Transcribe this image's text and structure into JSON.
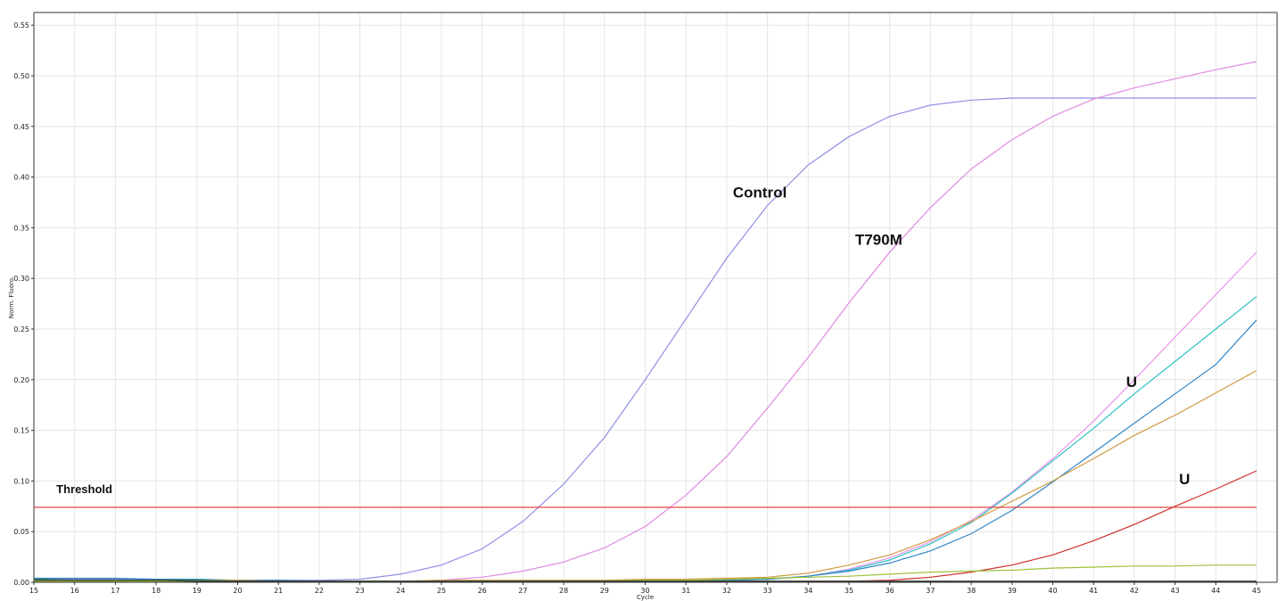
{
  "chart_data": {
    "type": "line",
    "xlabel": "Cycle",
    "ylabel": "Norm. Fluoro.",
    "xlim": [
      15,
      45
    ],
    "ylim": [
      0,
      0.56
    ],
    "x_ticks": [
      15,
      16,
      17,
      18,
      19,
      20,
      21,
      22,
      23,
      24,
      25,
      26,
      27,
      28,
      29,
      30,
      31,
      32,
      33,
      34,
      35,
      36,
      37,
      38,
      39,
      40,
      41,
      42,
      43,
      44,
      45
    ],
    "y_ticks": [
      0.0,
      0.05,
      0.1,
      0.15,
      0.2,
      0.25,
      0.3,
      0.35,
      0.4,
      0.45,
      0.5,
      0.55
    ],
    "y_tick_labels": [
      "0.00",
      "0.05",
      "0.10",
      "0.15",
      "0.20",
      "0.25",
      "0.30",
      "0.35",
      "0.40",
      "0.45",
      "0.50",
      "0.55"
    ],
    "grid": true,
    "threshold": {
      "label": "Threshold",
      "value": 0.074,
      "color": "#e03030"
    },
    "x": [
      15,
      16,
      17,
      18,
      19,
      20,
      21,
      22,
      23,
      24,
      25,
      26,
      27,
      28,
      29,
      30,
      31,
      32,
      33,
      34,
      35,
      36,
      37,
      38,
      39,
      40,
      41,
      42,
      43,
      44,
      45
    ],
    "series": [
      {
        "color": "#8f8fe6",
        "values": [
          0.003,
          0.003,
          0.003,
          0.003,
          0.002,
          0.002,
          0.002,
          0.002,
          0.003,
          0.008,
          0.017,
          0.033,
          0.06,
          0.097,
          0.143,
          0.2,
          0.26,
          0.32,
          0.372,
          0.412,
          0.44,
          0.46,
          0.471,
          0.476,
          0.478,
          0.478,
          0.478,
          0.478,
          0.478,
          0.478,
          0.478
        ]
      },
      {
        "color": "#e08ae0",
        "values": [
          0.002,
          0.002,
          0.002,
          0.002,
          0.002,
          0.001,
          0.001,
          0.001,
          0.001,
          0.001,
          0.002,
          0.005,
          0.011,
          0.02,
          0.034,
          0.055,
          0.086,
          0.124,
          0.172,
          0.222,
          0.276,
          0.326,
          0.37,
          0.408,
          0.437,
          0.46,
          0.477,
          0.488,
          0.497,
          0.506,
          0.514
        ]
      },
      {
        "color": "#e896e8",
        "values": [
          0.001,
          0.001,
          0.001,
          0.001,
          0.001,
          0.001,
          0.001,
          0.001,
          0.001,
          0.001,
          0.001,
          0.001,
          0.001,
          0.001,
          0.002,
          0.002,
          0.002,
          0.002,
          0.003,
          0.006,
          0.013,
          0.024,
          0.04,
          0.061,
          0.089,
          0.122,
          0.159,
          0.2,
          0.242,
          0.284,
          0.326
        ]
      },
      {
        "color": "#30c0c0",
        "values": [
          0.002,
          0.002,
          0.002,
          0.002,
          0.002,
          0.002,
          0.001,
          0.001,
          0.001,
          0.001,
          0.001,
          0.001,
          0.001,
          0.001,
          0.001,
          0.001,
          0.001,
          0.002,
          0.003,
          0.006,
          0.012,
          0.022,
          0.038,
          0.059,
          0.088,
          0.12,
          0.152,
          0.186,
          0.218,
          0.25,
          0.282
        ]
      },
      {
        "color": "#2f86c8",
        "values": [
          0.004,
          0.004,
          0.004,
          0.003,
          0.003,
          0.002,
          0.002,
          0.001,
          0.001,
          0.001,
          0.001,
          0.001,
          0.001,
          0.001,
          0.001,
          0.002,
          0.002,
          0.002,
          0.003,
          0.006,
          0.011,
          0.019,
          0.031,
          0.048,
          0.071,
          0.099,
          0.128,
          0.157,
          0.186,
          0.215,
          0.259
        ]
      },
      {
        "color": "#d09a40",
        "values": [
          0.002,
          0.002,
          0.002,
          0.002,
          0.002,
          0.002,
          0.001,
          0.001,
          0.001,
          0.001,
          0.002,
          0.002,
          0.002,
          0.002,
          0.002,
          0.003,
          0.003,
          0.004,
          0.005,
          0.009,
          0.017,
          0.027,
          0.042,
          0.06,
          0.08,
          0.1,
          0.122,
          0.145,
          0.165,
          0.187,
          0.209
        ]
      },
      {
        "color": "#d03030",
        "values": [
          0.001,
          0.001,
          0.001,
          0.001,
          0.001,
          0.001,
          0.001,
          0.001,
          0.001,
          0.001,
          0.001,
          0.001,
          0.001,
          0.001,
          0.001,
          0.001,
          0.001,
          0.001,
          0.001,
          0.001,
          0.001,
          0.002,
          0.005,
          0.01,
          0.017,
          0.027,
          0.041,
          0.057,
          0.075,
          0.092,
          0.11
        ]
      },
      {
        "color": "#9cc23a",
        "values": [
          0.001,
          0.001,
          0.001,
          0.001,
          0.001,
          0.001,
          0.001,
          0.001,
          0.001,
          0.001,
          0.001,
          0.001,
          0.001,
          0.001,
          0.001,
          0.002,
          0.002,
          0.003,
          0.004,
          0.005,
          0.006,
          0.008,
          0.01,
          0.011,
          0.012,
          0.014,
          0.015,
          0.016,
          0.016,
          0.017,
          0.017
        ]
      },
      {
        "color": "#208040",
        "values": [
          0.003,
          0.002,
          0.002,
          0.002,
          0.002,
          0.001,
          0.001,
          0.001,
          0.001,
          0.001,
          0.001,
          0.001,
          0.001,
          0.001,
          0.001,
          0.001,
          0.001,
          0.001,
          0.001,
          0.001,
          0.001,
          0.001,
          0.001,
          0.001,
          0.001,
          0.001,
          0.001,
          0.001,
          0.001,
          0.001,
          0.001
        ]
      },
      {
        "color": "#3a3a3a",
        "values": [
          0.002,
          0.002,
          0.002,
          0.002,
          0.001,
          0.001,
          0.001,
          0.001,
          0.001,
          0.001,
          0.001,
          0.001,
          0.001,
          0.001,
          0.001,
          0.001,
          0.001,
          0.001,
          0.001,
          0.001,
          0.001,
          0.001,
          0.001,
          0.001,
          0.001,
          0.001,
          0.001,
          0.001,
          0.001,
          0.001,
          0.001
        ]
      }
    ],
    "annotations": [
      {
        "text": "Control",
        "x": 32.15,
        "y": 0.38,
        "size": 17
      },
      {
        "text": "T790M",
        "x": 35.15,
        "y": 0.333,
        "size": 17
      },
      {
        "text": "U",
        "x": 41.8,
        "y": 0.193,
        "size": 17
      },
      {
        "text": "U",
        "x": 43.1,
        "y": 0.097,
        "size": 17
      },
      {
        "text": "Threshold",
        "x": 15.55,
        "y": 0.088,
        "size": 13
      }
    ]
  }
}
